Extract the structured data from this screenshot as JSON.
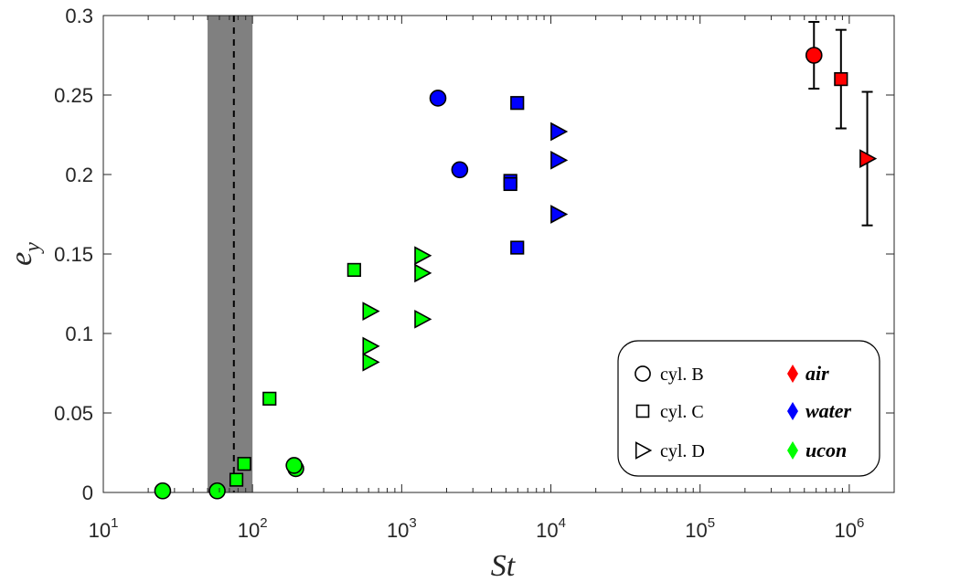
{
  "chart_data": {
    "type": "scatter",
    "xscale": "log",
    "xlim": [
      10,
      2000000
    ],
    "ylim": [
      0,
      0.3
    ],
    "xlabel": "St",
    "ylabel": "e",
    "ylabel_subscript": "y",
    "xticks": [
      {
        "value": 10,
        "base": "10",
        "exp": "1"
      },
      {
        "value": 100,
        "base": "10",
        "exp": "2"
      },
      {
        "value": 1000,
        "base": "10",
        "exp": "3"
      },
      {
        "value": 10000,
        "base": "10",
        "exp": "4"
      },
      {
        "value": 100000,
        "base": "10",
        "exp": "5"
      },
      {
        "value": 1000000,
        "base": "10",
        "exp": "6"
      }
    ],
    "yticks": [
      {
        "value": 0,
        "label": "0"
      },
      {
        "value": 0.05,
        "label": "0.05"
      },
      {
        "value": 0.1,
        "label": "0.1"
      },
      {
        "value": 0.15,
        "label": "0.15"
      },
      {
        "value": 0.2,
        "label": "0.2"
      },
      {
        "value": 0.25,
        "label": "0.25"
      },
      {
        "value": 0.3,
        "label": "0.3"
      }
    ],
    "shaded_band": {
      "x_min": 50,
      "x_max": 100,
      "color": "#808080"
    },
    "dashed_line": {
      "x": 75
    },
    "colors": {
      "air": "#ff0000",
      "water": "#0000ff",
      "ucon": "#00ff00"
    },
    "series": [
      {
        "name": "ucon cyl. B",
        "fluid": "ucon",
        "marker": "circle",
        "points": [
          {
            "x": 25,
            "y": 0.001
          },
          {
            "x": 58,
            "y": 0.001
          },
          {
            "x": 195,
            "y": 0.015
          },
          {
            "x": 190,
            "y": 0.017
          }
        ]
      },
      {
        "name": "ucon cyl. C",
        "fluid": "ucon",
        "marker": "square",
        "points": [
          {
            "x": 78,
            "y": 0.008
          },
          {
            "x": 88,
            "y": 0.018
          },
          {
            "x": 130,
            "y": 0.059
          },
          {
            "x": 480,
            "y": 0.14
          }
        ]
      },
      {
        "name": "ucon cyl. D",
        "fluid": "ucon",
        "marker": "triangle-right",
        "points": [
          {
            "x": 615,
            "y": 0.114
          },
          {
            "x": 615,
            "y": 0.092
          },
          {
            "x": 615,
            "y": 0.082
          },
          {
            "x": 1370,
            "y": 0.149
          },
          {
            "x": 1370,
            "y": 0.138
          },
          {
            "x": 1370,
            "y": 0.109
          }
        ]
      },
      {
        "name": "water cyl. B",
        "fluid": "water",
        "marker": "circle",
        "points": [
          {
            "x": 1750,
            "y": 0.248
          },
          {
            "x": 2450,
            "y": 0.203
          }
        ]
      },
      {
        "name": "water cyl. C",
        "fluid": "water",
        "marker": "square",
        "points": [
          {
            "x": 5950,
            "y": 0.245
          },
          {
            "x": 5350,
            "y": 0.196
          },
          {
            "x": 5350,
            "y": 0.194
          },
          {
            "x": 5950,
            "y": 0.154
          }
        ]
      },
      {
        "name": "water cyl. D",
        "fluid": "water",
        "marker": "triangle-right",
        "points": [
          {
            "x": 11200,
            "y": 0.227
          },
          {
            "x": 11200,
            "y": 0.209
          },
          {
            "x": 11200,
            "y": 0.175
          }
        ]
      },
      {
        "name": "air cyl. B",
        "fluid": "air",
        "marker": "circle",
        "points": [
          {
            "x": 580000,
            "y": 0.275,
            "err": 0.021
          }
        ]
      },
      {
        "name": "air cyl. C",
        "fluid": "air",
        "marker": "square",
        "points": [
          {
            "x": 880000,
            "y": 0.26,
            "err": 0.031
          }
        ]
      },
      {
        "name": "air cyl. D",
        "fluid": "air",
        "marker": "triangle-right",
        "points": [
          {
            "x": 1320000,
            "y": 0.21,
            "err": 0.042
          }
        ]
      }
    ],
    "legend": {
      "position": "bottom-right",
      "shape_entries": [
        {
          "marker": "circle",
          "label": "cyl.  B"
        },
        {
          "marker": "square",
          "label": "cyl.  C"
        },
        {
          "marker": "triangle-right",
          "label": "cyl.  D"
        }
      ],
      "fluid_entries": [
        {
          "fluid": "air",
          "label": "air"
        },
        {
          "fluid": "water",
          "label": "water"
        },
        {
          "fluid": "ucon",
          "label": "ucon"
        }
      ]
    }
  }
}
